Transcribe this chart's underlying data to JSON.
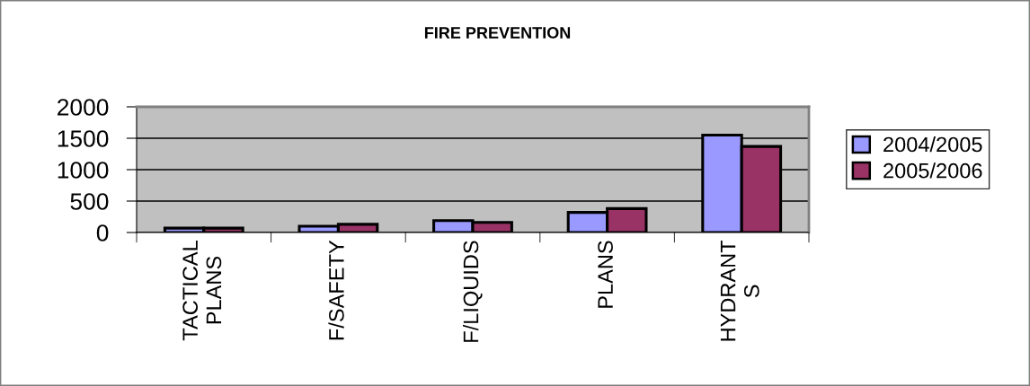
{
  "chart_data": {
    "type": "bar",
    "title": "FIRE PREVENTION",
    "categories": [
      "TACTICAL\nPLANS",
      "F/SAFETY",
      "F/LIQUIDS",
      "PLANS",
      "HYDRANT\nS"
    ],
    "series": [
      {
        "name": "2004/2005",
        "color": "#9999ff",
        "values": [
          70,
          100,
          190,
          320,
          1550
        ]
      },
      {
        "name": "2005/2006",
        "color": "#993366",
        "values": [
          70,
          130,
          160,
          380,
          1370
        ]
      }
    ],
    "ylim": [
      0,
      2000
    ],
    "yticks": [
      0,
      500,
      1000,
      1500,
      2000
    ],
    "grid": "y",
    "legend": "right"
  }
}
